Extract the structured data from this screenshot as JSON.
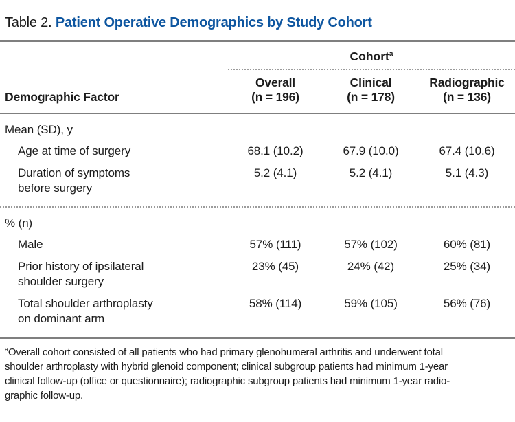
{
  "title": {
    "prefix": "Table 2. ",
    "main": "Patient Operative Demographics by Study Cohort"
  },
  "colors": {
    "title_blue": "#0e56a0",
    "rule_gray": "#7f7f7f",
    "dotted_gray": "#9b9b9b",
    "text": "#1c1c1c"
  },
  "table": {
    "span_header": {
      "label": "Cohort",
      "sup": "a"
    },
    "row_header": "Demographic Factor",
    "columns": [
      {
        "name": "Overall",
        "n": "(n = 196)"
      },
      {
        "name": "Clinical",
        "n": "(n = 178)"
      },
      {
        "name": "Radiographic",
        "n": "(n = 136)"
      }
    ],
    "sections": [
      {
        "label": "Mean (SD), y",
        "rows": [
          {
            "label": "Age at time of surgery",
            "values": [
              "68.1 (10.2)",
              "67.9 (10.0)",
              "67.4 (10.6)"
            ]
          },
          {
            "label": "Duration of symptoms\nbefore surgery",
            "values": [
              "5.2 (4.1)",
              "5.2 (4.1)",
              "5.1 (4.3)"
            ]
          }
        ]
      },
      {
        "label": "% (n)",
        "rows": [
          {
            "label": "Male",
            "values": [
              "57% (111)",
              "57% (102)",
              "60% (81)"
            ]
          },
          {
            "label": "Prior history of ipsilateral\nshoulder surgery",
            "values": [
              "23% (45)",
              "24% (42)",
              "25% (34)"
            ]
          },
          {
            "label": "Total shoulder arthroplasty\non dominant arm",
            "values": [
              "58% (114)",
              "59% (105)",
              "56% (76)"
            ]
          }
        ]
      }
    ]
  },
  "footnote": {
    "marker": "a",
    "lines": [
      "Overall cohort consisted of all patients who had primary glenohumeral arthritis and underwent total",
      "shoulder arthroplasty with hybrid glenoid component; clinical subgroup patients had minimum 1-year",
      "clinical follow-up (office or questionnaire); radiographic subgroup patients had minimum 1-year radio-",
      "graphic follow-up."
    ]
  }
}
